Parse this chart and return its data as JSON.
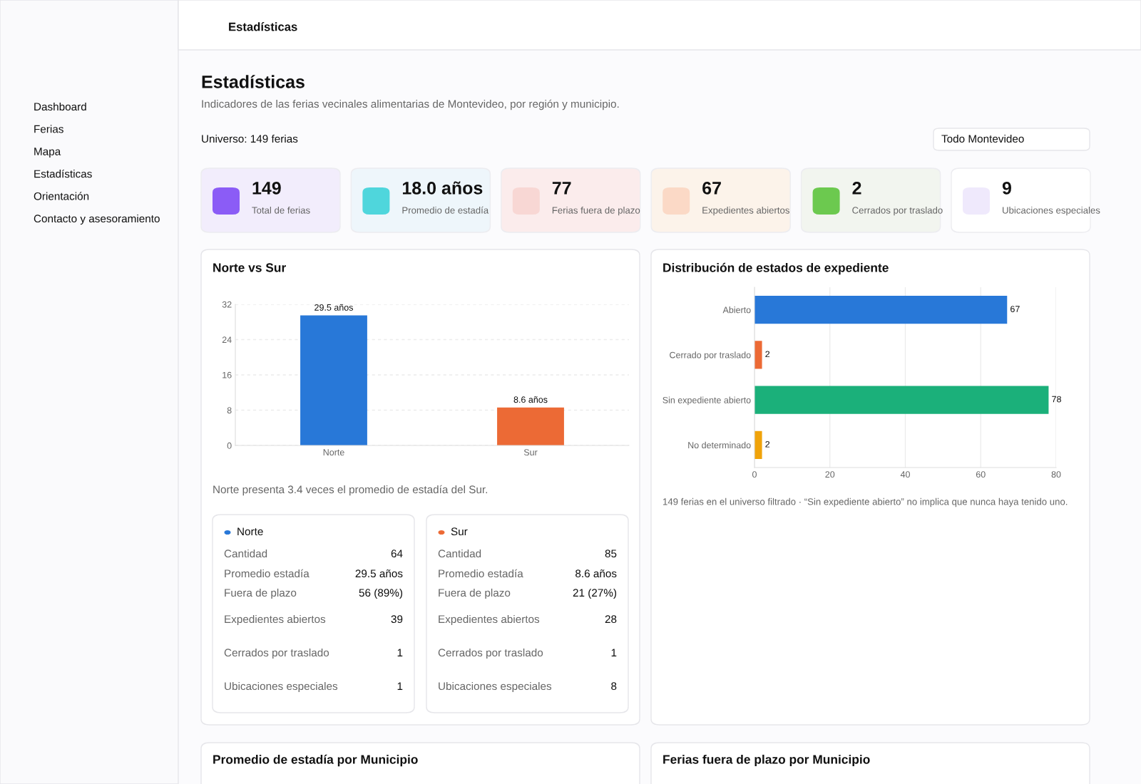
{
  "chart_data": [
    {
      "type": "other",
      "annotations": [
        "Dashboard",
        "Ferias",
        "Mapa",
        "Estadísticas",
        "Orientación",
        "Contacto y asesoramiento"
      ]
    },
    {
      "type": "other",
      "title": "Estadísticas",
      "subtitle": "Indicadores de las ferias vecinales alimentarias de Montevideo, por región y municipio.",
      "annotations": [
        "Estadísticas",
        "Universo: 149 ferias",
        "Todo Montevideo"
      ]
    },
    {
      "type": "other",
      "annotations": [
        "149",
        "Total de ferias",
        "18.0 años",
        "Promedio de estadía",
        "77",
        "Ferias fuera de plazo",
        "67",
        "Expedientes abiertos",
        "2",
        "Cerrados por traslado",
        "9",
        "Ubicaciones especiales"
      ]
    },
    {
      "type": "bar",
      "title": "Norte vs Sur",
      "categories": [
        "Norte",
        "Sur"
      ],
      "values": [
        29.5,
        8.6
      ],
      "colors": [
        "#2878d8",
        "#ec6a35"
      ],
      "value_labels": [
        "29.5 años",
        "8.6 años"
      ],
      "ylim": [
        0,
        32
      ],
      "yticks": [
        0,
        8,
        16,
        24,
        32
      ],
      "grid": "y",
      "annotations": [
        "Norte presenta 3.4 veces el promedio de estadía del Sur."
      ]
    },
    {
      "type": "bar",
      "orientation": "horizontal",
      "title": "Distribución de estados de expediente",
      "categories": [
        "Abierto",
        "Cerrado por traslado",
        "Sin expediente abierto",
        "No determinado"
      ],
      "values": [
        67,
        2,
        78,
        2
      ],
      "colors": [
        "#2878d8",
        "#ec6a35",
        "#1bb07a",
        "#f0a30a"
      ],
      "data_labels": true,
      "xlim": [
        0,
        80
      ],
      "xticks": [
        0,
        20,
        40,
        60,
        80
      ],
      "grid": "x",
      "annotations": [
        "149 ferias en el universo filtrado · “Sin expediente abierto” no implica que nunca haya tenido uno."
      ]
    },
    {
      "type": "other",
      "title": "Norte",
      "annotations": [
        "Cantidad",
        "64",
        "Promedio estadía",
        "29.5 años",
        "Fuera de plazo",
        "56 (89%)",
        "Expedientes abiertos",
        "39",
        "Cerrados por traslado",
        "1",
        "Ubicaciones especiales",
        "1"
      ]
    },
    {
      "type": "other",
      "title": "Sur",
      "annotations": [
        "Cantidad",
        "85",
        "Promedio estadía",
        "8.6 años",
        "Fuera de plazo",
        "21 (27%)",
        "Expedientes abiertos",
        "28",
        "Cerrados por traslado",
        "1",
        "Ubicaciones especiales",
        "8"
      ]
    },
    {
      "type": "other",
      "title": "Promedio de estadía por Municipio"
    },
    {
      "type": "other",
      "title": "Ferias fuera de plazo por Municipio"
    }
  ]
}
